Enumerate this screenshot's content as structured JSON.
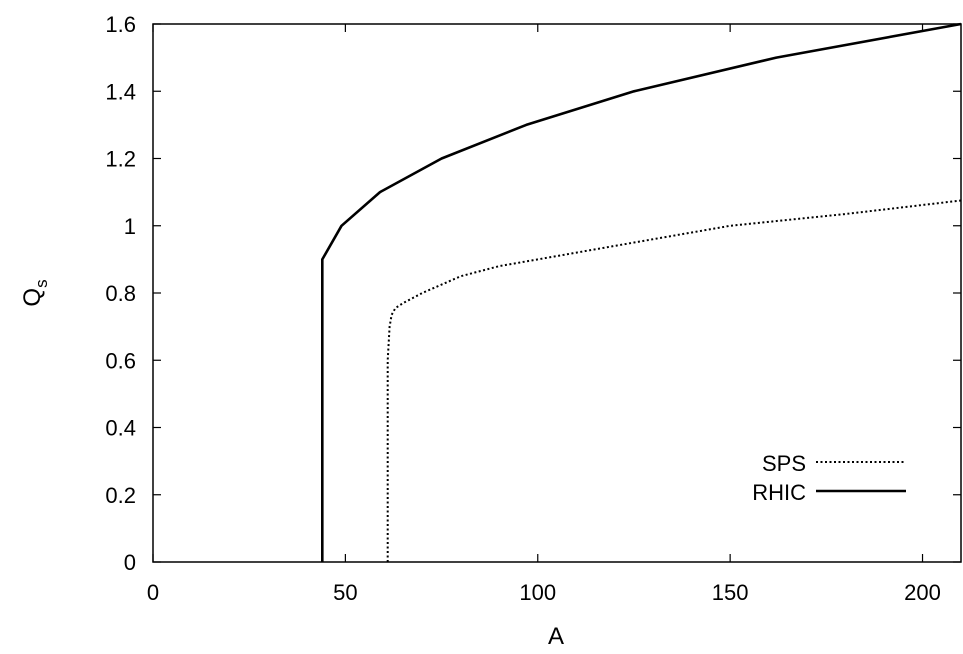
{
  "chart_data": {
    "type": "line",
    "xlabel": "A",
    "ylabel_main": "Q",
    "ylabel_sub": "s",
    "xlim": [
      0,
      210
    ],
    "ylim": [
      0,
      1.6
    ],
    "xticks": [
      0,
      50,
      100,
      150,
      200
    ],
    "xtick_labels": [
      "0",
      "50",
      "100",
      "150",
      "200"
    ],
    "yticks": [
      0,
      0.2,
      0.4,
      0.6,
      0.8,
      1.0,
      1.2,
      1.4,
      1.6
    ],
    "ytick_labels": [
      "0",
      "0.2",
      "0.4",
      "0.6",
      "0.8",
      "1",
      "1.2",
      "1.4",
      "1.6"
    ],
    "grid": false,
    "legend_position": "bottom-right",
    "series": [
      {
        "name": "SPS",
        "style": "dotted",
        "color": "#000000",
        "x": [
          61,
          61,
          61.5,
          62,
          63,
          65,
          70,
          80,
          90,
          100,
          120,
          150,
          180,
          210
        ],
        "y": [
          0,
          0.6,
          0.7,
          0.735,
          0.755,
          0.77,
          0.8,
          0.85,
          0.88,
          0.9,
          0.94,
          1.0,
          1.035,
          1.075
        ]
      },
      {
        "name": "RHIC",
        "style": "solid",
        "color": "#000000",
        "x": [
          44,
          44,
          49,
          59,
          75,
          97,
          125,
          162,
          210
        ],
        "y": [
          0,
          0.9,
          1.0,
          1.1,
          1.2,
          1.3,
          1.4,
          1.5,
          1.6
        ]
      }
    ]
  }
}
